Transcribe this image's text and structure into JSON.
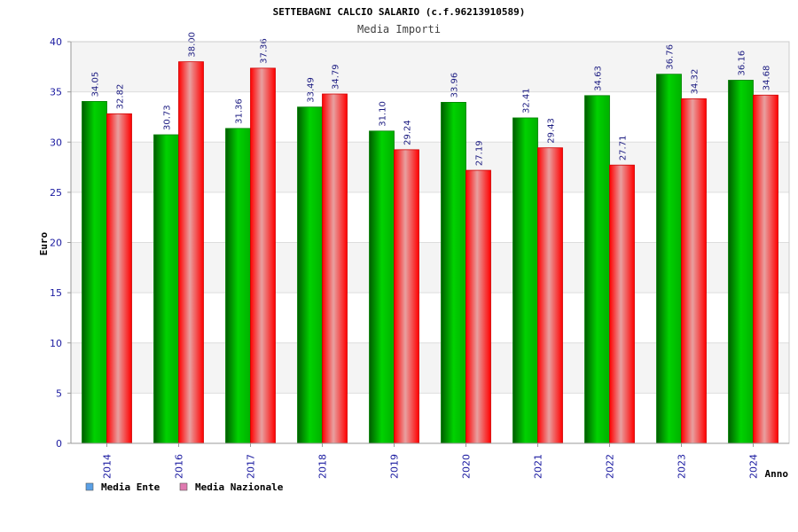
{
  "chart_data": {
    "type": "bar",
    "title": "SETTEBAGNI CALCIO SALARIO (c.f.96213910589)",
    "subtitle": "Media Importi",
    "xlabel": "Anno",
    "ylabel": "Euro",
    "ylim": [
      0,
      40
    ],
    "yticks": [
      0,
      5,
      10,
      15,
      20,
      25,
      30,
      35,
      40
    ],
    "grid": true,
    "legend_position": "bottom-left",
    "categories": [
      "2014",
      "2016",
      "2017",
      "2018",
      "2019",
      "2020",
      "2021",
      "2022",
      "2023",
      "2024"
    ],
    "series": [
      {
        "name": "Media Ente",
        "values": [
          34.05,
          30.73,
          31.36,
          33.49,
          31.1,
          33.96,
          32.41,
          34.63,
          36.76,
          36.16
        ],
        "labels": [
          "34.05",
          "30.73",
          "31.36",
          "33.49",
          "31.10",
          "33.96",
          "32.41",
          "34.63",
          "36.76",
          "36.16"
        ],
        "color": "#00b400",
        "legend_color": "#5aa0e6"
      },
      {
        "name": "Media Nazionale",
        "values": [
          32.82,
          38.0,
          37.36,
          34.79,
          29.24,
          27.19,
          29.43,
          27.71,
          34.32,
          34.68
        ],
        "labels": [
          "32.82",
          "38.00",
          "37.36",
          "34.79",
          "29.24",
          "27.19",
          "29.43",
          "27.71",
          "34.32",
          "34.68"
        ],
        "color": "#ff0000",
        "legend_color": "#e07ab0"
      }
    ]
  }
}
